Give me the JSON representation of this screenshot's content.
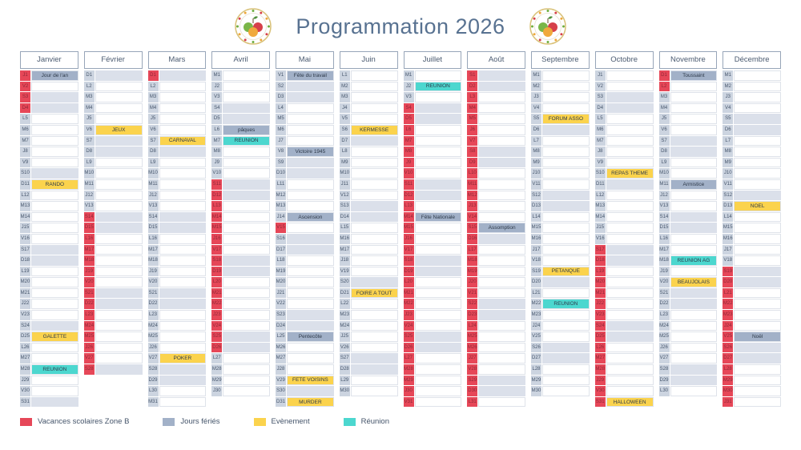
{
  "title": "Programmation 2026",
  "day_letters": [
    "L",
    "M",
    "M",
    "J",
    "V",
    "S",
    "D"
  ],
  "legend": [
    {
      "type": "vacances",
      "label": "Vacances scolaires Zone B",
      "color": "#e64758"
    },
    {
      "type": "ferie",
      "label": "Jours fériés",
      "color": "#a2b1c8"
    },
    {
      "type": "evenement",
      "label": "Evènement",
      "color": "#fbd34d"
    },
    {
      "type": "reunion",
      "label": "Réunion",
      "color": "#4cd7cf"
    }
  ],
  "months": [
    {
      "name": "Janvier",
      "days": 31,
      "first_dow": 3,
      "vacances": [
        [
          1,
          4
        ]
      ],
      "events": [
        {
          "day": 1,
          "label": "Jour de l'an",
          "type": "ferie"
        },
        {
          "day": 11,
          "label": "RANDO",
          "type": "evenement"
        },
        {
          "day": 25,
          "label": "GALETTE",
          "type": "evenement"
        },
        {
          "day": 28,
          "label": "REUNION",
          "type": "reunion"
        }
      ]
    },
    {
      "name": "Février",
      "days": 28,
      "first_dow": 6,
      "vacances": [
        [
          14,
          28
        ]
      ],
      "events": [
        {
          "day": 6,
          "label": "JEUX",
          "type": "evenement"
        }
      ]
    },
    {
      "name": "Mars",
      "days": 31,
      "first_dow": 6,
      "vacances": [
        [
          1,
          1
        ]
      ],
      "events": [
        {
          "day": 7,
          "label": "CARNAVAL",
          "type": "evenement"
        },
        {
          "day": 27,
          "label": "POKER",
          "type": "evenement"
        }
      ]
    },
    {
      "name": "Avril",
      "days": 30,
      "first_dow": 2,
      "vacances": [
        [
          11,
          26
        ]
      ],
      "events": [
        {
          "day": 6,
          "label": "pâques",
          "type": "ferie"
        },
        {
          "day": 7,
          "label": "REUNION",
          "type": "reunion"
        }
      ]
    },
    {
      "name": "Mai",
      "days": 31,
      "first_dow": 4,
      "vacances": [
        [
          15,
          15
        ]
      ],
      "events": [
        {
          "day": 1,
          "label": "Fête du travail",
          "type": "ferie"
        },
        {
          "day": 8,
          "label": "Victoire 1945",
          "type": "ferie"
        },
        {
          "day": 14,
          "label": "Ascension",
          "type": "ferie"
        },
        {
          "day": 25,
          "label": "Pentecôte",
          "type": "ferie"
        },
        {
          "day": 29,
          "label": "FETE VOISINS",
          "type": "evenement"
        },
        {
          "day": 31,
          "label": "MURDER",
          "type": "evenement"
        }
      ]
    },
    {
      "name": "Juin",
      "days": 30,
      "first_dow": 0,
      "vacances": [],
      "events": [
        {
          "day": 6,
          "label": "KERMESSE",
          "type": "evenement"
        },
        {
          "day": 21,
          "label": "FOIRE A TOUT",
          "type": "evenement"
        }
      ]
    },
    {
      "name": "Juillet",
      "days": 31,
      "first_dow": 2,
      "vacances": [
        [
          4,
          31
        ]
      ],
      "events": [
        {
          "day": 2,
          "label": "REUNION",
          "type": "reunion"
        },
        {
          "day": 14,
          "label": "Fête Nationale",
          "type": "ferie"
        }
      ]
    },
    {
      "name": "Août",
      "days": 31,
      "first_dow": 5,
      "vacances": [
        [
          1,
          31
        ]
      ],
      "events": [
        {
          "day": 15,
          "label": "Assomption",
          "type": "ferie"
        }
      ]
    },
    {
      "name": "Septembre",
      "days": 30,
      "first_dow": 1,
      "vacances": [],
      "events": [
        {
          "day": 5,
          "label": "FORUM ASSO",
          "type": "evenement"
        },
        {
          "day": 19,
          "label": "PETANQUE",
          "type": "evenement"
        },
        {
          "day": 22,
          "label": "REUNION",
          "type": "reunion"
        }
      ]
    },
    {
      "name": "Octobre",
      "days": 31,
      "first_dow": 3,
      "vacances": [
        [
          17,
          31
        ]
      ],
      "events": [
        {
          "day": 10,
          "label": "REPAS THEME",
          "type": "evenement"
        },
        {
          "day": 31,
          "label": "HALLOWEEN",
          "type": "evenement"
        }
      ]
    },
    {
      "name": "Novembre",
      "days": 30,
      "first_dow": 6,
      "vacances": [
        [
          1,
          2
        ]
      ],
      "events": [
        {
          "day": 1,
          "label": "Toussaint",
          "type": "ferie"
        },
        {
          "day": 11,
          "label": "Armistice",
          "type": "ferie"
        },
        {
          "day": 18,
          "label": "REUNION AG",
          "type": "reunion"
        },
        {
          "day": 20,
          "label": "BEAUJOLAIS",
          "type": "evenement"
        }
      ]
    },
    {
      "name": "Décembre",
      "days": 31,
      "first_dow": 1,
      "vacances": [
        [
          19,
          31
        ]
      ],
      "events": [
        {
          "day": 13,
          "label": "NOEL",
          "type": "evenement"
        },
        {
          "day": 25,
          "label": "Noël",
          "type": "ferie"
        }
      ]
    }
  ]
}
